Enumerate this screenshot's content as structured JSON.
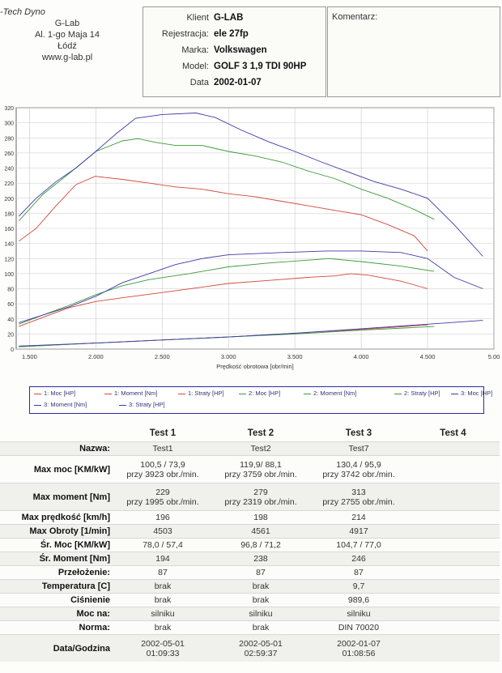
{
  "company": {
    "brand": "-Tech Dyno",
    "name": "G-Lab",
    "address": "Al. 1-go Maja 14",
    "city": "Łódź",
    "website": "www.g-lab.pl"
  },
  "client": {
    "fields": [
      {
        "key": "Klient",
        "value": "G-LAB"
      },
      {
        "key": "Rejestracja:",
        "value": "ele 27fp"
      },
      {
        "key": "Marka:",
        "value": "Volkswagen"
      },
      {
        "key": "Model:",
        "value": "GOLF 3 1,9 TDI 90HP"
      },
      {
        "key": "Data",
        "value": "2002-01-07"
      }
    ]
  },
  "comment": {
    "label": "Komentarz:"
  },
  "chart_data": {
    "type": "line",
    "title": "",
    "xlabel": "Prędkość obrotowa [obr/min]",
    "ylabel": "",
    "xlim": [
      1400,
      5000
    ],
    "ylim": [
      0,
      320
    ],
    "x_ticks": [
      "1.500",
      "2.000",
      "2.500",
      "3.000",
      "3.500",
      "4.000",
      "4.500",
      "5.00"
    ],
    "x_tick_values": [
      1500,
      2000,
      2500,
      3000,
      3500,
      4000,
      4500,
      5000
    ],
    "y_ticks": [
      0,
      20,
      40,
      60,
      80,
      100,
      120,
      140,
      160,
      180,
      200,
      220,
      240,
      260,
      280,
      300,
      320
    ],
    "grid": true,
    "colors": {
      "red": "#d2473a",
      "green": "#3a9a3a",
      "blue": "#3a3aa8"
    },
    "series": [
      {
        "name": "1: Moc [HP]",
        "color": "#d2473a",
        "points": [
          [
            1420,
            30
          ],
          [
            1600,
            42
          ],
          [
            1800,
            55
          ],
          [
            2000,
            63
          ],
          [
            2200,
            68
          ],
          [
            2500,
            75
          ],
          [
            2800,
            82
          ],
          [
            3000,
            87
          ],
          [
            3300,
            91
          ],
          [
            3600,
            95
          ],
          [
            3800,
            97
          ],
          [
            3923,
            100
          ],
          [
            4050,
            98
          ],
          [
            4300,
            90
          ],
          [
            4500,
            80
          ]
        ]
      },
      {
        "name": "1: Moment [Nm]",
        "color": "#d2473a",
        "points": [
          [
            1420,
            143
          ],
          [
            1550,
            160
          ],
          [
            1700,
            190
          ],
          [
            1850,
            218
          ],
          [
            1995,
            229
          ],
          [
            2200,
            225
          ],
          [
            2400,
            220
          ],
          [
            2600,
            215
          ],
          [
            2800,
            212
          ],
          [
            3000,
            206
          ],
          [
            3200,
            202
          ],
          [
            3400,
            196
          ],
          [
            3600,
            190
          ],
          [
            3800,
            184
          ],
          [
            4000,
            178
          ],
          [
            4200,
            165
          ],
          [
            4400,
            150
          ],
          [
            4500,
            130
          ]
        ]
      },
      {
        "name": "1: Straty [HP]",
        "color": "#d2473a",
        "points": [
          [
            1420,
            3
          ],
          [
            2000,
            8
          ],
          [
            2500,
            12
          ],
          [
            3000,
            16
          ],
          [
            3500,
            21
          ],
          [
            4000,
            26
          ],
          [
            4500,
            32
          ]
        ]
      },
      {
        "name": "2: Moc [HP]",
        "color": "#3a9a3a",
        "points": [
          [
            1420,
            33
          ],
          [
            1600,
            45
          ],
          [
            1800,
            58
          ],
          [
            2000,
            72
          ],
          [
            2200,
            84
          ],
          [
            2400,
            92
          ],
          [
            2700,
            100
          ],
          [
            3000,
            109
          ],
          [
            3300,
            114
          ],
          [
            3759,
            120
          ],
          [
            4000,
            116
          ],
          [
            4300,
            110
          ],
          [
            4550,
            103
          ]
        ]
      },
      {
        "name": "2: Moment [Nm]",
        "color": "#3a9a3a",
        "points": [
          [
            1420,
            170
          ],
          [
            1600,
            205
          ],
          [
            1800,
            233
          ],
          [
            2000,
            262
          ],
          [
            2200,
            276
          ],
          [
            2319,
            279
          ],
          [
            2450,
            274
          ],
          [
            2600,
            270
          ],
          [
            2800,
            270
          ],
          [
            3000,
            262
          ],
          [
            3200,
            256
          ],
          [
            3400,
            248
          ],
          [
            3600,
            236
          ],
          [
            3800,
            226
          ],
          [
            4000,
            212
          ],
          [
            4200,
            200
          ],
          [
            4400,
            185
          ],
          [
            4550,
            172
          ]
        ]
      },
      {
        "name": "2: Straty [HP]",
        "color": "#3a9a3a",
        "points": [
          [
            1420,
            3
          ],
          [
            2000,
            8
          ],
          [
            2500,
            12
          ],
          [
            3000,
            16
          ],
          [
            3500,
            20
          ],
          [
            4000,
            25
          ],
          [
            4550,
            30
          ]
        ]
      },
      {
        "name": "3: Moc [HP]",
        "color": "#3a3aa8",
        "points": [
          [
            1420,
            35
          ],
          [
            1600,
            45
          ],
          [
            1800,
            56
          ],
          [
            2000,
            70
          ],
          [
            2200,
            88
          ],
          [
            2400,
            100
          ],
          [
            2600,
            112
          ],
          [
            2800,
            120
          ],
          [
            3000,
            125
          ],
          [
            3400,
            128
          ],
          [
            3742,
            130
          ],
          [
            4000,
            130
          ],
          [
            4300,
            128
          ],
          [
            4500,
            120
          ],
          [
            4700,
            95
          ],
          [
            4917,
            80
          ]
        ]
      },
      {
        "name": "3: Moment [Nm]",
        "color": "#3a3aa8",
        "points": [
          [
            1420,
            176
          ],
          [
            1550,
            200
          ],
          [
            1700,
            222
          ],
          [
            1850,
            240
          ],
          [
            2000,
            262
          ],
          [
            2150,
            285
          ],
          [
            2300,
            306
          ],
          [
            2500,
            311
          ],
          [
            2755,
            313
          ],
          [
            2900,
            307
          ],
          [
            3100,
            290
          ],
          [
            3300,
            275
          ],
          [
            3500,
            262
          ],
          [
            3700,
            248
          ],
          [
            3900,
            235
          ],
          [
            4100,
            222
          ],
          [
            4300,
            212
          ],
          [
            4500,
            200
          ],
          [
            4700,
            165
          ],
          [
            4917,
            123
          ]
        ]
      },
      {
        "name": "3: Straty [HP]",
        "color": "#3a3aa8",
        "points": [
          [
            1420,
            4
          ],
          [
            2000,
            8
          ],
          [
            2500,
            12
          ],
          [
            3000,
            16
          ],
          [
            3500,
            21
          ],
          [
            4000,
            27
          ],
          [
            4500,
            33
          ],
          [
            4917,
            38
          ]
        ]
      }
    ]
  },
  "summary": {
    "headers": [
      "",
      "Test 1",
      "Test 2",
      "Test 3",
      "Test 4"
    ],
    "rows": [
      {
        "label": "Nazwa:",
        "values": [
          "Test1",
          "Test2",
          "Test7",
          ""
        ]
      },
      {
        "label": "Max moc [KM/kW]",
        "values": [
          "100,5 / 73,9\nprzy 3923 obr./min.",
          "119,9/ 88,1\nprzy 3759 obr./min.",
          "130,4 / 95,9\nprzy 3742 obr./min.",
          ""
        ]
      },
      {
        "label": "Max moment [Nm]",
        "values": [
          "229\nprzy 1995 obr./min.",
          "279\nprzy 2319 obr./min.",
          "313\nprzy 2755 obr./min.",
          ""
        ]
      },
      {
        "label": "Max prędkość [km/h]",
        "values": [
          "196",
          "198",
          "214",
          ""
        ]
      },
      {
        "label": "Max Obroty [1/min]",
        "values": [
          "4503",
          "4561",
          "4917",
          ""
        ]
      },
      {
        "label": "Śr. Moc [KM/kW]",
        "values": [
          "78,0 / 57,4",
          "96,8 / 71,2",
          "104,7 / 77,0",
          ""
        ]
      },
      {
        "label": "Śr. Moment [Nm]",
        "values": [
          "194",
          "238",
          "246",
          ""
        ]
      },
      {
        "label": "Przełożenie:",
        "values": [
          "87",
          "87",
          "87",
          ""
        ]
      },
      {
        "label": "Temperatura [C]",
        "values": [
          "brak",
          "brak",
          "9,7",
          ""
        ]
      },
      {
        "label": "Ciśnienie",
        "values": [
          "brak",
          "brak",
          "989,6",
          ""
        ]
      },
      {
        "label": "Moc na:",
        "values": [
          "silniku",
          "silniku",
          "silniku",
          ""
        ]
      },
      {
        "label": "Norma:",
        "values": [
          "brak",
          "brak",
          "DIN 70020",
          ""
        ]
      },
      {
        "label": "Data/Godzina",
        "values": [
          "2002-05-01\n01:09:33",
          "2002-05-01\n02:59:37",
          "2002-01-07\n01:08:56",
          ""
        ]
      }
    ]
  }
}
